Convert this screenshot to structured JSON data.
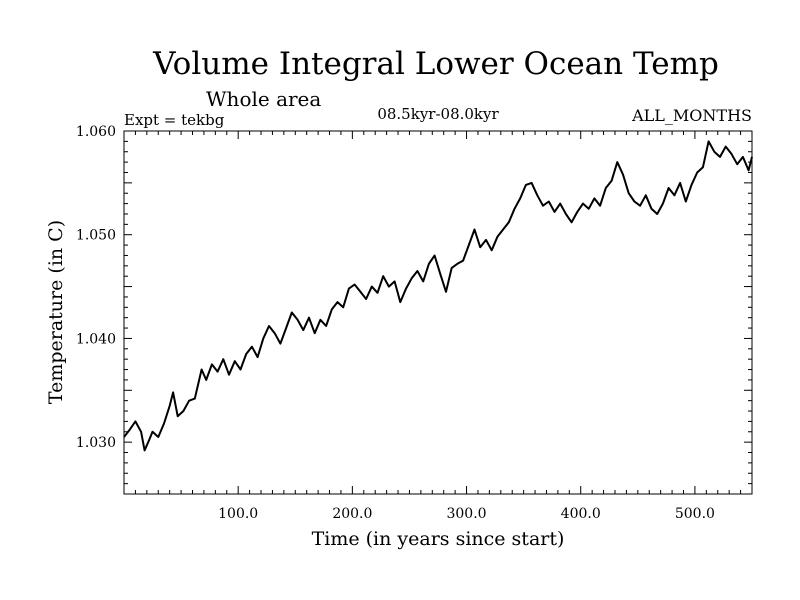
{
  "chart_data": {
    "type": "line",
    "title": "Volume Integral Lower Ocean Temp",
    "subtitle": "Whole area",
    "experiment_label": "Expt = tekbg",
    "period_label": "08.5kyr-08.0kyr",
    "months_label": "ALL_MONTHS",
    "xlabel": "Time (in years since start)",
    "ylabel": "Temperature (in C)",
    "xlim": [
      0,
      550
    ],
    "ylim": [
      1.025,
      1.06
    ],
    "x_ticks": [
      100,
      200,
      300,
      400,
      500
    ],
    "x_tick_labels": [
      "100.0",
      "200.0",
      "300.0",
      "400.0",
      "500.0"
    ],
    "y_ticks": [
      1.03,
      1.04,
      1.05,
      1.06
    ],
    "y_tick_labels": [
      "1.030",
      "1.040",
      "1.050",
      "1.060"
    ],
    "grid": false,
    "series": [
      {
        "name": "Volume Integral Lower Ocean Temp",
        "x": [
          0,
          5,
          10,
          15,
          18,
          22,
          25,
          30,
          35,
          40,
          43,
          47,
          52,
          57,
          62,
          68,
          72,
          77,
          82,
          87,
          92,
          97,
          102,
          107,
          112,
          117,
          122,
          127,
          132,
          137,
          142,
          147,
          152,
          157,
          162,
          167,
          172,
          177,
          182,
          187,
          192,
          197,
          202,
          207,
          212,
          217,
          222,
          227,
          232,
          237,
          242,
          247,
          252,
          257,
          262,
          267,
          272,
          277,
          282,
          287,
          292,
          297,
          302,
          307,
          312,
          317,
          322,
          327,
          332,
          337,
          342,
          347,
          352,
          357,
          362,
          367,
          372,
          377,
          382,
          387,
          392,
          397,
          402,
          407,
          412,
          417,
          422,
          427,
          432,
          437,
          442,
          447,
          452,
          457,
          462,
          467,
          472,
          477,
          482,
          487,
          492,
          497,
          502,
          507,
          512,
          517,
          522,
          527,
          532,
          537,
          542,
          547,
          550
        ],
        "y": [
          1.0305,
          1.0312,
          1.032,
          1.031,
          1.0292,
          1.0302,
          1.031,
          1.0305,
          1.0318,
          1.0335,
          1.0348,
          1.0325,
          1.033,
          1.034,
          1.0342,
          1.037,
          1.036,
          1.0375,
          1.0368,
          1.038,
          1.0365,
          1.0378,
          1.037,
          1.0385,
          1.0392,
          1.0382,
          1.04,
          1.0412,
          1.0405,
          1.0395,
          1.041,
          1.0425,
          1.0418,
          1.0408,
          1.042,
          1.0405,
          1.0418,
          1.0412,
          1.0428,
          1.0435,
          1.043,
          1.0448,
          1.0452,
          1.0445,
          1.0438,
          1.045,
          1.0444,
          1.046,
          1.045,
          1.0455,
          1.0435,
          1.0448,
          1.0458,
          1.0465,
          1.0455,
          1.0472,
          1.048,
          1.0462,
          1.0445,
          1.0468,
          1.0472,
          1.0475,
          1.049,
          1.0505,
          1.0488,
          1.0495,
          1.0485,
          1.0498,
          1.0505,
          1.0512,
          1.0525,
          1.0535,
          1.0548,
          1.055,
          1.0538,
          1.0528,
          1.0532,
          1.0522,
          1.053,
          1.052,
          1.0512,
          1.0522,
          1.053,
          1.0525,
          1.0535,
          1.0528,
          1.0545,
          1.0552,
          1.057,
          1.0558,
          1.054,
          1.0532,
          1.0528,
          1.0538,
          1.0525,
          1.052,
          1.053,
          1.0545,
          1.0538,
          1.055,
          1.0532,
          1.0548,
          1.056,
          1.0565,
          1.059,
          1.058,
          1.0575,
          1.0585,
          1.0578,
          1.0568,
          1.0575,
          1.0562,
          1.0575
        ]
      }
    ]
  }
}
